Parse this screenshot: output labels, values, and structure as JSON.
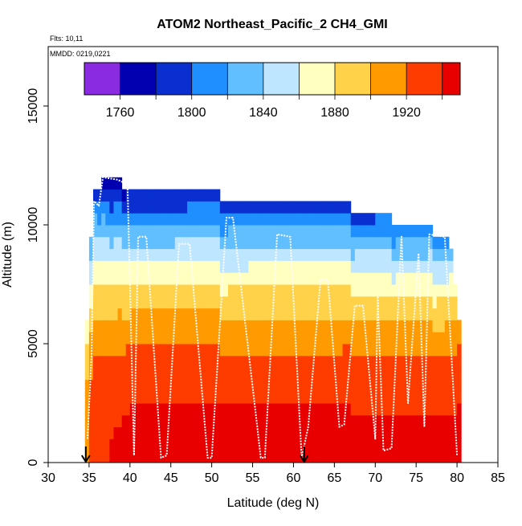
{
  "chart_data": {
    "type": "heatmap",
    "title": "ATOM2 Northeast_Pacific_2 CH4_GMI",
    "flights_label": "Flts: 10,11",
    "mmdd_label": "MMDD: 0219,0221",
    "xlabel": "Latitude (deg N)",
    "ylabel": "Altitude (m)",
    "xlim": [
      30,
      85
    ],
    "ylim": [
      0,
      17500
    ],
    "x_ticks": [
      "30",
      "35",
      "40",
      "45",
      "50",
      "55",
      "60",
      "65",
      "70",
      "75",
      "80",
      "85"
    ],
    "y_ticks": [
      "0",
      "5000",
      "10000",
      "15000"
    ],
    "colorbar": {
      "range": [
        1740,
        1950
      ],
      "tick_labels": [
        "1760",
        "1800",
        "1840",
        "1880",
        "1920"
      ],
      "tick_values": [
        1760,
        1800,
        1840,
        1880,
        1920
      ],
      "bands": [
        1740,
        1760,
        1780,
        1800,
        1820,
        1840,
        1860,
        1880,
        1900,
        1920,
        1940,
        1950
      ],
      "colors": [
        "#8a2be2",
        "#0000b0",
        "#0a2fd0",
        "#1f8fff",
        "#62bfff",
        "#bfe6ff",
        "#ffffc0",
        "#ffd24a",
        "#ff9a00",
        "#ff3c00",
        "#e80000",
        "#a31d1d"
      ]
    },
    "data_columns": [
      {
        "lat": 34.5,
        "top": 4000,
        "surface": 1910,
        "top_value": 1890
      },
      {
        "lat": 35.5,
        "top": 11500,
        "surface": 1940,
        "top_value": 1790
      },
      {
        "lat": 37.5,
        "top": 12000,
        "surface": 1940,
        "top_value": 1760
      },
      {
        "lat": 40.0,
        "top": 11600,
        "surface": 1945,
        "top_value": 1775
      },
      {
        "lat": 45.0,
        "top": 11300,
        "surface": 1945,
        "top_value": 1775
      },
      {
        "lat": 50.0,
        "top": 11300,
        "surface": 1945,
        "top_value": 1780
      },
      {
        "lat": 54.5,
        "top": 11000,
        "surface": 1945,
        "top_value": 1785
      },
      {
        "lat": 60.0,
        "top": 11000,
        "surface": 1945,
        "top_value": 1785
      },
      {
        "lat": 65.0,
        "top": 11000,
        "surface": 1945,
        "top_value": 1785
      },
      {
        "lat": 69.0,
        "top": 10500,
        "surface": 1945,
        "top_value": 1790
      },
      {
        "lat": 74.5,
        "top": 10000,
        "surface": 1945,
        "top_value": 1800
      },
      {
        "lat": 79.0,
        "top": 9500,
        "surface": 1945,
        "top_value": 1810
      },
      {
        "lat": 80.5,
        "top": 5000,
        "surface": 1945,
        "top_value": 1930
      }
    ],
    "flight_track": [
      [
        34.8,
        1000
      ],
      [
        35.3,
        4500
      ],
      [
        35.6,
        11000
      ],
      [
        36.2,
        10800
      ],
      [
        36.7,
        12000
      ],
      [
        38.5,
        11900
      ],
      [
        39.7,
        11700
      ],
      [
        40.5,
        300
      ],
      [
        41.0,
        9500
      ],
      [
        42.0,
        9500
      ],
      [
        43.8,
        200
      ],
      [
        44.5,
        300
      ],
      [
        46.0,
        9200
      ],
      [
        47.3,
        9200
      ],
      [
        49.5,
        200
      ],
      [
        50.0,
        200
      ],
      [
        51.8,
        10300
      ],
      [
        52.6,
        10300
      ],
      [
        55.6,
        1400
      ],
      [
        56.0,
        200
      ],
      [
        56.5,
        200
      ],
      [
        58.0,
        9600
      ],
      [
        59.6,
        9500
      ],
      [
        61.0,
        200
      ],
      [
        61.8,
        1500
      ],
      [
        63.3,
        7700
      ],
      [
        64.2,
        7700
      ],
      [
        65.6,
        1500
      ],
      [
        66.2,
        1600
      ],
      [
        67.5,
        6600
      ],
      [
        68.5,
        6600
      ],
      [
        70.0,
        1000
      ],
      [
        70.3,
        7000
      ],
      [
        71.0,
        500
      ],
      [
        72.0,
        600
      ],
      [
        73.2,
        9500
      ],
      [
        74.0,
        2500
      ],
      [
        75.3,
        8800
      ],
      [
        76.0,
        1500
      ],
      [
        76.6,
        9600
      ],
      [
        78.5,
        9500
      ],
      [
        80.0,
        300
      ]
    ],
    "arrows": [
      {
        "lat": 34.6,
        "alt": 0
      },
      {
        "lat": 61.3,
        "alt": 0
      }
    ]
  }
}
